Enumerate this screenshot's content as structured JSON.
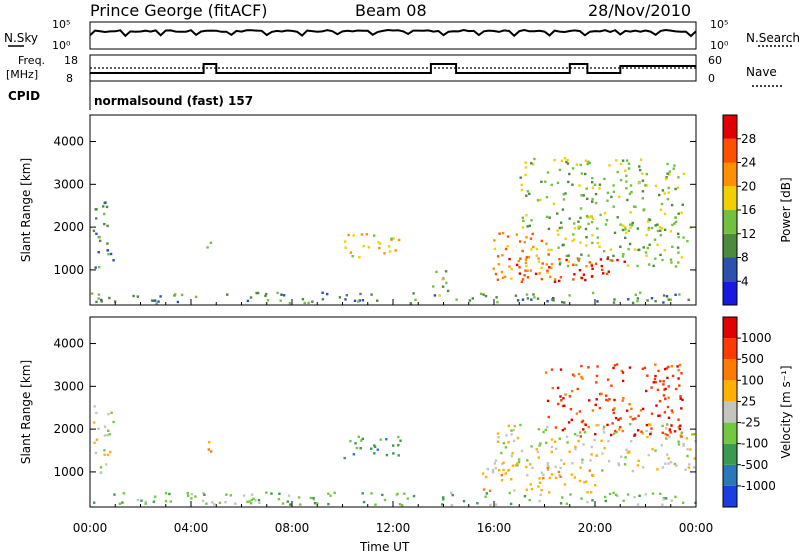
{
  "header": {
    "station": "Prince George (fitACF)",
    "beam": "Beam 08",
    "date": "28/Nov/2010"
  },
  "nsky_panel": {
    "left_label": "N.Sky",
    "left_ticks": [
      "10^5",
      "10^0"
    ],
    "right_ticks": [
      "10^5",
      "10^0"
    ],
    "right_label": "N.Search"
  },
  "freq_panel": {
    "left_label_1": "Freq.",
    "left_label_2": "[MHz]",
    "left_ticks": [
      "18",
      "8"
    ],
    "right_ticks": [
      "60",
      "0"
    ],
    "right_label": "Nave"
  },
  "cpid": {
    "label": "CPID",
    "value": "normalsound (fast) 157"
  },
  "chart_data": [
    {
      "type": "heatmap",
      "name": "power",
      "ylabel": "Slant Range [km]",
      "xlabel": "Time UT",
      "xticks": [
        "00:00",
        "04:00",
        "08:00",
        "12:00",
        "16:00",
        "20:00",
        "00:00"
      ],
      "yticks": [
        "1000",
        "2000",
        "3000",
        "4000"
      ],
      "ylim": [
        180,
        4620
      ],
      "colorbar": {
        "label": "Power [dB]",
        "ticks": [
          "4",
          "8",
          "12",
          "16",
          "20",
          "24",
          "28"
        ],
        "colors": [
          "#1818e0",
          "#2c50b0",
          "#4e8a3e",
          "#72c040",
          "#f0d000",
          "#ff9000",
          "#ff5000",
          "#e00000"
        ]
      },
      "regions": [
        {
          "t": [
            0.1,
            0.9
          ],
          "r": [
            800,
            2600
          ],
          "level": 2
        },
        {
          "t": [
            4.6,
            4.9
          ],
          "r": [
            1450,
            1900
          ],
          "level": 3
        },
        {
          "t": [
            10.0,
            12.3
          ],
          "r": [
            1250,
            1850
          ],
          "level": 4
        },
        {
          "t": [
            13.5,
            14.2
          ],
          "r": [
            350,
            1100
          ],
          "level": 3
        },
        {
          "t": [
            15.9,
            18.6
          ],
          "r": [
            700,
            1850
          ],
          "level": 5
        },
        {
          "t": [
            16.5,
            20.0
          ],
          "r": [
            700,
            1300
          ],
          "level": 6
        },
        {
          "t": [
            18.5,
            23.8
          ],
          "r": [
            1050,
            2000
          ],
          "level": 3
        },
        {
          "t": [
            19.5,
            21.2
          ],
          "r": [
            750,
            1250
          ],
          "level": 7
        },
        {
          "t": [
            17.0,
            23.5
          ],
          "r": [
            1900,
            3600
          ],
          "level": 3
        },
        {
          "t": [
            0.0,
            24.0
          ],
          "r": [
            200,
            450
          ],
          "level": 2
        }
      ]
    },
    {
      "type": "heatmap",
      "name": "velocity",
      "ylabel": "Slant Range [km]",
      "xlabel": "Time UT",
      "xticks": [
        "00:00",
        "04:00",
        "08:00",
        "12:00",
        "16:00",
        "20:00",
        "00:00"
      ],
      "yticks": [
        "1000",
        "2000",
        "3000",
        "4000"
      ],
      "ylim": [
        180,
        4620
      ],
      "colorbar": {
        "label": "Velocity [m s^-1]",
        "ticks": [
          "1000",
          "500",
          "100",
          "25",
          "-25",
          "-100",
          "-500",
          "-1000"
        ],
        "colors": [
          "#1a3ee0",
          "#2a78b8",
          "#3a9a50",
          "#74c840",
          "#c4c4c0",
          "#ffb000",
          "#ff7a00",
          "#ff3a00",
          "#e00000"
        ]
      },
      "regions": [
        {
          "t": [
            0.1,
            0.9
          ],
          "r": [
            900,
            2600
          ],
          "level": 4
        },
        {
          "t": [
            4.6,
            4.9
          ],
          "r": [
            1450,
            2100
          ],
          "level": 6
        },
        {
          "t": [
            10.0,
            12.3
          ],
          "r": [
            1250,
            1850
          ],
          "level": 2
        },
        {
          "t": [
            16.0,
            24.0
          ],
          "r": [
            1000,
            2100
          ],
          "level": 4
        },
        {
          "t": [
            18.0,
            23.5
          ],
          "r": [
            1800,
            3500
          ],
          "level": 7
        },
        {
          "t": [
            15.5,
            20.0
          ],
          "r": [
            500,
            1200
          ],
          "level": 5
        },
        {
          "t": [
            0.0,
            24.0
          ],
          "r": [
            200,
            500
          ],
          "level": 3
        }
      ]
    }
  ]
}
